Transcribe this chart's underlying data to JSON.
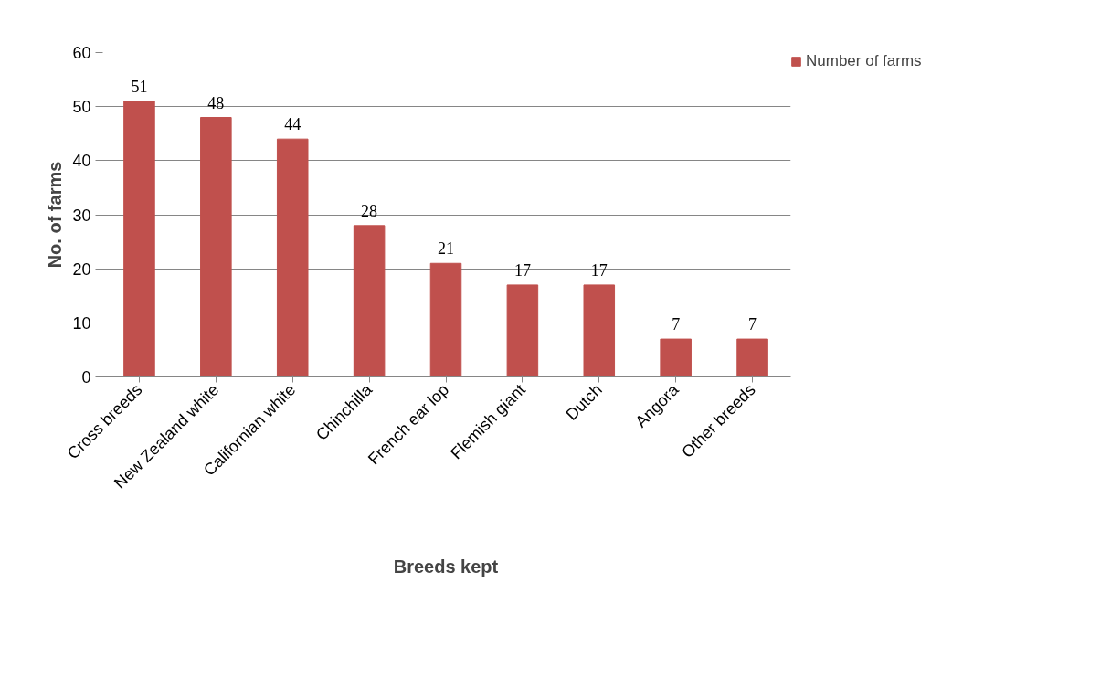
{
  "chart_data": {
    "type": "bar",
    "xlabel": "Breeds kept",
    "ylabel": "No. of farms",
    "categories": [
      "Cross breeds",
      "New Zealand white",
      "Californian white",
      "Chinchilla",
      "French ear lop",
      "Flemish giant",
      "Dutch",
      "Angora",
      "Other breeds"
    ],
    "series": [
      {
        "name": "Number of farms",
        "color": "#c0504d",
        "values": [
          51,
          48,
          44,
          28,
          21,
          17,
          17,
          7,
          7
        ]
      }
    ],
    "ylim": [
      0,
      60
    ],
    "yticks": [
      0,
      10,
      20,
      30,
      40,
      50,
      60
    ],
    "grid": "y",
    "legend": "top right",
    "data_labels": true
  }
}
